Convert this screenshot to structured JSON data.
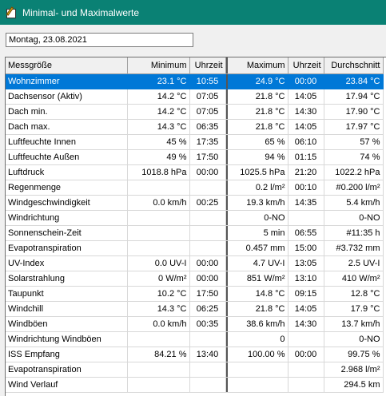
{
  "window": {
    "title": "Minimal- und Maximalwerte",
    "icon": "notepad-icon"
  },
  "date_field": {
    "value": "Montag, 23.08.2021"
  },
  "table": {
    "headers": [
      "Messgröße",
      "Minimum",
      "Uhrzeit",
      "Maximum",
      "Uhrzeit",
      "Durchschnitt"
    ],
    "rows": [
      [
        "Wohnzimmer",
        "23.1 °C",
        "10:55",
        "24.9 °C",
        "00:00",
        "23.84 °C"
      ],
      [
        "Dachsensor (Aktiv)",
        "14.2 °C",
        "07:05",
        "21.8 °C",
        "14:05",
        "17.94 °C"
      ],
      [
        "Dach min.",
        "14.2 °C",
        "07:05",
        "21.8 °C",
        "14:30",
        "17.90 °C"
      ],
      [
        "Dach max.",
        "14.3 °C",
        "06:35",
        "21.8 °C",
        "14:05",
        "17.97 °C"
      ],
      [
        "Luftfeuchte Innen",
        "45 %",
        "17:35",
        "65 %",
        "06:10",
        "57 %"
      ],
      [
        "Luftfeuchte Außen",
        "49 %",
        "17:50",
        "94 %",
        "01:15",
        "74 %"
      ],
      [
        "Luftdruck",
        "1018.8 hPa",
        "00:00",
        "1025.5 hPa",
        "21:20",
        "1022.2 hPa"
      ],
      [
        "Regenmenge",
        "",
        "",
        "0.2 l/m²",
        "00:10",
        "#0.200 l/m²"
      ],
      [
        "Windgeschwindigkeit",
        "0.0 km/h",
        "00:25",
        "19.3 km/h",
        "14:35",
        "5.4 km/h"
      ],
      [
        "Windrichtung",
        "",
        "",
        "0-NO",
        "",
        "0-NO"
      ],
      [
        "Sonnenschein-Zeit",
        "",
        "",
        "5 min",
        "06:55",
        "#11:35 h"
      ],
      [
        "Evapotranspiration",
        "",
        "",
        "0.457 mm",
        "15:00",
        "#3.732 mm"
      ],
      [
        "UV-Index",
        "0.0 UV-I",
        "00:00",
        "4.7 UV-I",
        "13:05",
        "2.5 UV-I"
      ],
      [
        "Solarstrahlung",
        "0 W/m²",
        "00:00",
        "851 W/m²",
        "13:10",
        "410 W/m²"
      ],
      [
        "Taupunkt",
        "10.2 °C",
        "17:50",
        "14.8 °C",
        "09:15",
        "12.8 °C"
      ],
      [
        "Windchill",
        "14.3 °C",
        "06:25",
        "21.8 °C",
        "14:05",
        "17.9 °C"
      ],
      [
        "Windböen",
        "0.0 km/h",
        "00:35",
        "38.6 km/h",
        "14:30",
        "13.7 km/h"
      ],
      [
        "Windrichtung Windböen",
        "",
        "",
        "0",
        "",
        "0-NO"
      ],
      [
        "ISS Empfang",
        "84.21 %",
        "13:40",
        "100.00 %",
        "00:00",
        "99.75 %"
      ],
      [
        "Evapotranspiration",
        "",
        "",
        "",
        "",
        "2.968 l/m²"
      ],
      [
        "Wind Verlauf",
        "",
        "",
        "",
        "",
        "294.5 km"
      ]
    ],
    "selected_row": 0
  }
}
